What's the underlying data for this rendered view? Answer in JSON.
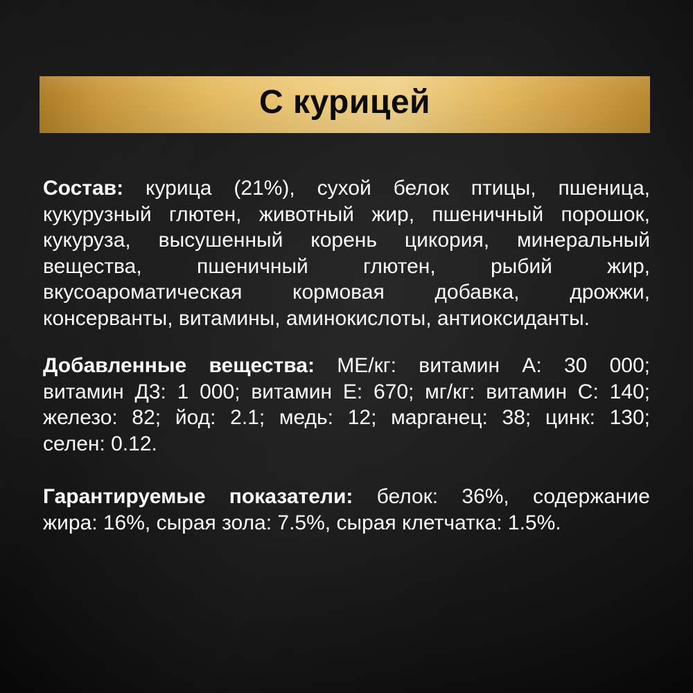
{
  "banner": {
    "title": "С курицей"
  },
  "sections": [
    {
      "label": "Состав:",
      "lines": [
        "курица (21%), сухой белок птицы, пшеница,",
        "кукурузный глютен, животный жир, пшеничный порошок,",
        "кукуруза, высушенный корень цикория, минеральный",
        "вещества, пшеничный глютен, рыбий жир,",
        "вкусоароматическая кормовая добавка, дрожжи,",
        "консерванты, витамины, аминокислоты, антиоксиданты."
      ]
    },
    {
      "label": "Добавленные вещества:",
      "lines": [
        "МЕ/кг: витамин А: 30 000;",
        "витамин Д3: 1 000; витамин Е: 670; мг/кг: витамин С: 140;",
        "железо: 82; йод: 2.1; медь: 12; марганец: 38; цинк: 130;",
        "селен: 0.12."
      ]
    },
    {
      "label": "Гарантируемые показатели:",
      "lines": [
        "белок: 36%, содержание",
        "жира: 16%, сырая зола: 7.5%, сырая клетчатка: 1.5%."
      ]
    }
  ],
  "colors": {
    "background_dark": "#0a0a0a",
    "background_mid": "#242424",
    "banner_gold_light": "#f0d189",
    "banner_gold_dark": "#ae7e28",
    "body_text": "#fbfbfb",
    "banner_text": "#0d0b07"
  }
}
